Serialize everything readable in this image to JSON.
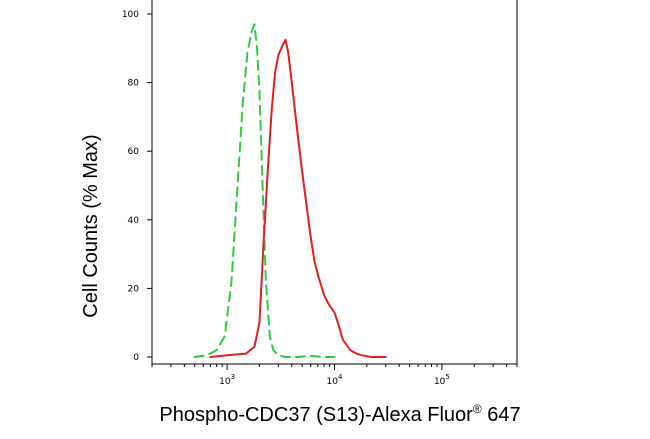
{
  "chart_data": {
    "type": "line",
    "title": "",
    "xlabel": "Phospho-CDC37 (S13)-Alexa Fluor",
    "xlabel_superscript": "®",
    "xlabel_suffix": " 647",
    "ylabel": "Cell Counts (% Max)",
    "x_scale": "log",
    "xlim": [
      200,
      500000
    ],
    "ylim": [
      0,
      100
    ],
    "y_ticks": [
      0,
      20,
      40,
      60,
      80,
      100
    ],
    "y_tick_labels": [
      "0",
      "20",
      "40",
      "60",
      "80",
      "100"
    ],
    "x_major_ticks": [
      1000,
      10000,
      100000
    ],
    "x_tick_label_base": "10",
    "x_tick_label_exponents": [
      "3",
      "4",
      "5"
    ],
    "grid": false,
    "series": [
      {
        "color": "#2ecc40",
        "dash": "dashed",
        "x": [
          500,
          650,
          800,
          950,
          1100,
          1250,
          1400,
          1550,
          1700,
          1800,
          1900,
          2000,
          2150,
          2300,
          2500,
          2700,
          3000,
          3500,
          4500,
          6000,
          8000,
          10000
        ],
        "y": [
          0,
          0.5,
          2,
          6,
          22,
          50,
          74,
          89,
          95,
          97,
          90,
          78,
          48,
          22,
          6,
          2,
          0.5,
          0,
          0,
          0.3,
          0,
          0
        ]
      },
      {
        "color": "#e02020",
        "dash": "solid",
        "x": [
          700,
          1000,
          1500,
          1800,
          2000,
          2200,
          2400,
          2600,
          2800,
          3000,
          3300,
          3500,
          3700,
          4000,
          4500,
          5000,
          5500,
          6000,
          6500,
          7000,
          8000,
          9000,
          10000,
          11000,
          12000,
          14000,
          16000,
          18000,
          22000,
          30000
        ],
        "y": [
          0,
          0.5,
          1,
          3,
          10,
          35,
          55,
          72,
          83,
          88,
          91,
          92.5,
          89,
          80,
          66,
          54,
          44,
          35,
          28,
          24,
          18,
          15,
          13,
          9,
          5,
          2,
          1,
          0.5,
          0,
          0
        ]
      }
    ]
  }
}
